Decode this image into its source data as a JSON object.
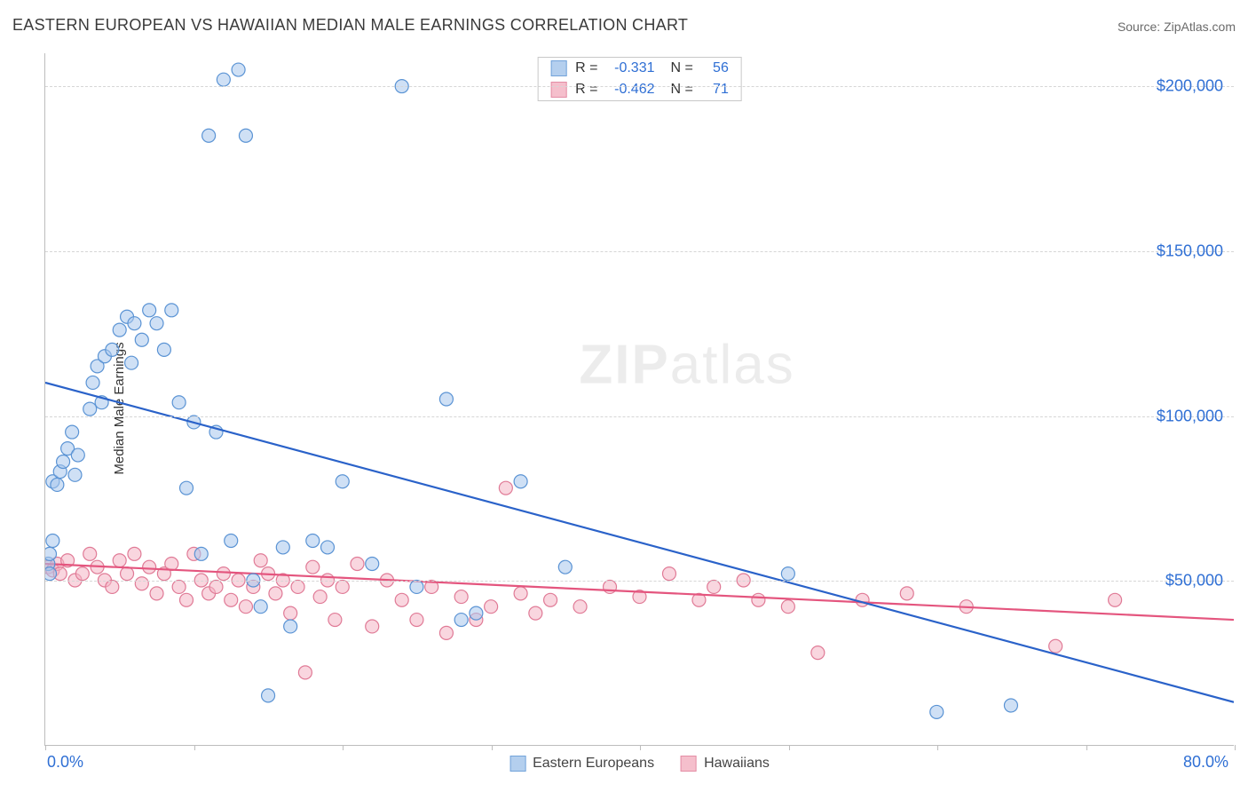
{
  "title": "EASTERN EUROPEAN VS HAWAIIAN MEDIAN MALE EARNINGS CORRELATION CHART",
  "source": "Source: ZipAtlas.com",
  "watermark": {
    "left": "ZIP",
    "right": "atlas"
  },
  "ylabel": "Median Male Earnings",
  "chart": {
    "type": "scatter",
    "background_color": "#ffffff",
    "grid_color": "#d6d6d6",
    "axis_color": "#bdbdbd",
    "tick_label_color": "#2f6fd4",
    "tick_fontsize": 18,
    "xlim": [
      0,
      80
    ],
    "ylim": [
      0,
      210000
    ],
    "y_ticks": [
      50000,
      100000,
      150000,
      200000
    ],
    "y_tick_labels": [
      "$50,000",
      "$100,000",
      "$150,000",
      "$200,000"
    ],
    "x_ticks": [
      0,
      10,
      20,
      30,
      40,
      50,
      60,
      70,
      80
    ],
    "x_tick_labels_shown": {
      "0": "0.0%",
      "80": "80.0%"
    },
    "point_radius": 7.5,
    "point_stroke_width": 1.2,
    "trend_line_width": 2.2,
    "series": {
      "eastern_europeans": {
        "label": "Eastern Europeans",
        "fill_color": "#a8c7ec",
        "stroke_color": "#5a93d4",
        "fill_opacity": 0.55,
        "trend_color": "#2a62c9",
        "trend": {
          "x1": 0,
          "y1": 110000,
          "x2": 80,
          "y2": 13000
        },
        "R": "-0.331",
        "N": "56",
        "points": [
          [
            0.2,
            55000
          ],
          [
            0.3,
            52000
          ],
          [
            0.3,
            58000
          ],
          [
            0.5,
            62000
          ],
          [
            0.5,
            80000
          ],
          [
            0.8,
            79000
          ],
          [
            1.0,
            83000
          ],
          [
            1.2,
            86000
          ],
          [
            1.5,
            90000
          ],
          [
            1.8,
            95000
          ],
          [
            2.0,
            82000
          ],
          [
            2.2,
            88000
          ],
          [
            3.0,
            102000
          ],
          [
            3.2,
            110000
          ],
          [
            3.5,
            115000
          ],
          [
            3.8,
            104000
          ],
          [
            4.0,
            118000
          ],
          [
            4.5,
            120000
          ],
          [
            5.0,
            126000
          ],
          [
            5.5,
            130000
          ],
          [
            5.8,
            116000
          ],
          [
            6.0,
            128000
          ],
          [
            6.5,
            123000
          ],
          [
            7.0,
            132000
          ],
          [
            7.5,
            128000
          ],
          [
            8.0,
            120000
          ],
          [
            8.5,
            132000
          ],
          [
            9.0,
            104000
          ],
          [
            9.5,
            78000
          ],
          [
            10.0,
            98000
          ],
          [
            10.5,
            58000
          ],
          [
            11.0,
            185000
          ],
          [
            12.0,
            202000
          ],
          [
            13.0,
            205000
          ],
          [
            13.5,
            185000
          ],
          [
            11.5,
            95000
          ],
          [
            12.5,
            62000
          ],
          [
            14.0,
            50000
          ],
          [
            14.5,
            42000
          ],
          [
            15.0,
            15000
          ],
          [
            16.0,
            60000
          ],
          [
            16.5,
            36000
          ],
          [
            18.0,
            62000
          ],
          [
            19.0,
            60000
          ],
          [
            20.0,
            80000
          ],
          [
            22.0,
            55000
          ],
          [
            24.0,
            200000
          ],
          [
            25.0,
            48000
          ],
          [
            27.0,
            105000
          ],
          [
            28.0,
            38000
          ],
          [
            29.0,
            40000
          ],
          [
            32.0,
            80000
          ],
          [
            35.0,
            54000
          ],
          [
            50.0,
            52000
          ],
          [
            60.0,
            10000
          ],
          [
            65.0,
            12000
          ]
        ]
      },
      "hawaiians": {
        "label": "Hawaiians",
        "fill_color": "#f4b4c4",
        "stroke_color": "#e07a96",
        "fill_opacity": 0.55,
        "trend_color": "#e4557e",
        "trend": {
          "x1": 0,
          "y1": 55000,
          "x2": 80,
          "y2": 38000
        },
        "R": "-0.462",
        "N": "71",
        "points": [
          [
            0.2,
            54000
          ],
          [
            0.5,
            53000
          ],
          [
            0.8,
            55000
          ],
          [
            1.0,
            52000
          ],
          [
            1.5,
            56000
          ],
          [
            2.0,
            50000
          ],
          [
            2.5,
            52000
          ],
          [
            3.0,
            58000
          ],
          [
            3.5,
            54000
          ],
          [
            4.0,
            50000
          ],
          [
            4.5,
            48000
          ],
          [
            5.0,
            56000
          ],
          [
            5.5,
            52000
          ],
          [
            6.0,
            58000
          ],
          [
            6.5,
            49000
          ],
          [
            7.0,
            54000
          ],
          [
            7.5,
            46000
          ],
          [
            8.0,
            52000
          ],
          [
            8.5,
            55000
          ],
          [
            9.0,
            48000
          ],
          [
            9.5,
            44000
          ],
          [
            10.0,
            58000
          ],
          [
            10.5,
            50000
          ],
          [
            11.0,
            46000
          ],
          [
            11.5,
            48000
          ],
          [
            12.0,
            52000
          ],
          [
            12.5,
            44000
          ],
          [
            13.0,
            50000
          ],
          [
            13.5,
            42000
          ],
          [
            14.0,
            48000
          ],
          [
            14.5,
            56000
          ],
          [
            15.0,
            52000
          ],
          [
            15.5,
            46000
          ],
          [
            16.0,
            50000
          ],
          [
            16.5,
            40000
          ],
          [
            17.0,
            48000
          ],
          [
            17.5,
            22000
          ],
          [
            18.0,
            54000
          ],
          [
            18.5,
            45000
          ],
          [
            19.0,
            50000
          ],
          [
            19.5,
            38000
          ],
          [
            20.0,
            48000
          ],
          [
            21.0,
            55000
          ],
          [
            22.0,
            36000
          ],
          [
            23.0,
            50000
          ],
          [
            24.0,
            44000
          ],
          [
            25.0,
            38000
          ],
          [
            26.0,
            48000
          ],
          [
            27.0,
            34000
          ],
          [
            28.0,
            45000
          ],
          [
            29.0,
            38000
          ],
          [
            30.0,
            42000
          ],
          [
            31.0,
            78000
          ],
          [
            32.0,
            46000
          ],
          [
            33.0,
            40000
          ],
          [
            34.0,
            44000
          ],
          [
            36.0,
            42000
          ],
          [
            38.0,
            48000
          ],
          [
            40.0,
            45000
          ],
          [
            42.0,
            52000
          ],
          [
            44.0,
            44000
          ],
          [
            45.0,
            48000
          ],
          [
            47.0,
            50000
          ],
          [
            48.0,
            44000
          ],
          [
            50.0,
            42000
          ],
          [
            52.0,
            28000
          ],
          [
            55.0,
            44000
          ],
          [
            58.0,
            46000
          ],
          [
            62.0,
            42000
          ],
          [
            68.0,
            30000
          ],
          [
            72.0,
            44000
          ]
        ]
      }
    }
  },
  "legend_top": {
    "border_color": "#c8c8c8",
    "rows": [
      {
        "series_key": "eastern_europeans",
        "R_label": "R =",
        "N_label": "N ="
      },
      {
        "series_key": "hawaiians",
        "R_label": "R =",
        "N_label": "N ="
      }
    ]
  },
  "legend_bottom": [
    {
      "series_key": "eastern_europeans"
    },
    {
      "series_key": "hawaiians"
    }
  ]
}
